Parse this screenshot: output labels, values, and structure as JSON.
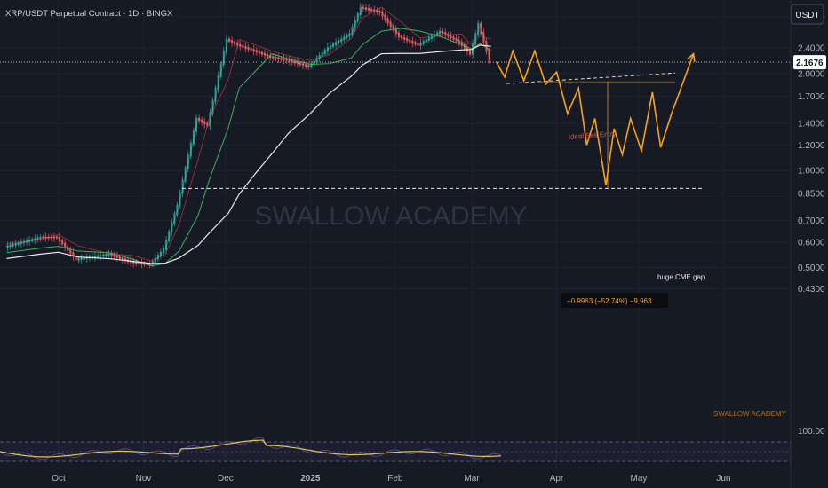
{
  "header": {
    "symbol_title": "XRP/USDT Perpetual Contract · 1D · BINGX",
    "currency_button": "USDT"
  },
  "watermark": "SWALLOW ACADEMY",
  "colors": {
    "background": "#161a25",
    "candle_up": "#1e9e8f",
    "candle_down": "#e04f5a",
    "ma_fast": "#3fae5c",
    "ma_slow": "#e8e8e8",
    "ma_red": "#e0453f",
    "projection": "#f7a21b",
    "rsi": "#d8c85a",
    "last_price_tag": "#ffffff"
  },
  "chart_data": {
    "type": "line",
    "scale": "log",
    "price_axis_ticks": [
      "3.0000",
      "2.4000",
      "2.0000",
      "1.7000",
      "1.4000",
      "1.2000",
      "1.0000",
      "0.8500",
      "0.7000",
      "0.6000",
      "0.5000",
      "0.4300"
    ],
    "time_axis_ticks": [
      "Oct",
      "Nov",
      "Dec",
      "2025",
      "Feb",
      "Mar",
      "Apr",
      "May",
      "Jun"
    ],
    "last_price": "2.1676",
    "series": [
      {
        "x": [
          "2024-09-12",
          "2024-09-25",
          "2024-10-01",
          "2024-10-08",
          "2024-10-20",
          "2024-10-28",
          "2024-11-04",
          "2024-11-09",
          "2024-11-14",
          "2024-11-21",
          "2024-11-25",
          "2024-12-02",
          "2024-12-06",
          "2024-12-12",
          "2024-12-18",
          "2024-12-24",
          "2025-01-01",
          "2025-01-08",
          "2025-01-16",
          "2025-01-20",
          "2025-01-27",
          "2025-02-03",
          "2025-02-10",
          "2025-02-18",
          "2025-02-25",
          "2025-03-01",
          "2025-03-04",
          "2025-03-08"
        ],
        "values": [
          0.58,
          0.62,
          0.62,
          0.53,
          0.55,
          0.52,
          0.51,
          0.57,
          0.78,
          1.45,
          1.38,
          2.55,
          2.45,
          2.35,
          2.25,
          2.2,
          2.1,
          2.4,
          2.65,
          3.2,
          3.1,
          2.6,
          2.45,
          2.7,
          2.5,
          2.3,
          2.85,
          2.2
        ]
      },
      {
        "x": [
          "2025-03-10",
          "2025-03-13",
          "2025-03-16",
          "2025-03-20",
          "2025-03-24",
          "2025-03-28",
          "2025-04-01",
          "2025-04-05",
          "2025-04-09",
          "2025-04-12",
          "2025-04-15",
          "2025-04-19",
          "2025-04-22",
          "2025-04-25",
          "2025-04-28",
          "2025-05-02",
          "2025-05-06",
          "2025-05-09",
          "2025-05-13",
          "2025-05-21"
        ],
        "values": [
          2.17,
          1.95,
          2.35,
          1.9,
          2.35,
          1.85,
          2.02,
          1.5,
          1.8,
          1.2,
          1.45,
          0.9,
          1.35,
          1.12,
          1.45,
          1.15,
          1.75,
          1.18,
          1.5,
          2.3
        ]
      }
    ],
    "annotations": [
      {
        "label": "Ideal Sell Entry"
      },
      {
        "label": "huge CME gap"
      },
      {
        "label": "−0.9963 (−52.74%) −9,963"
      }
    ],
    "reference_levels": {
      "sell_entry": 1.86,
      "cme_gap": 0.88
    },
    "rsi_axis_label": "100.00",
    "footer_watermark": "SWALLOW ACADEMY"
  }
}
